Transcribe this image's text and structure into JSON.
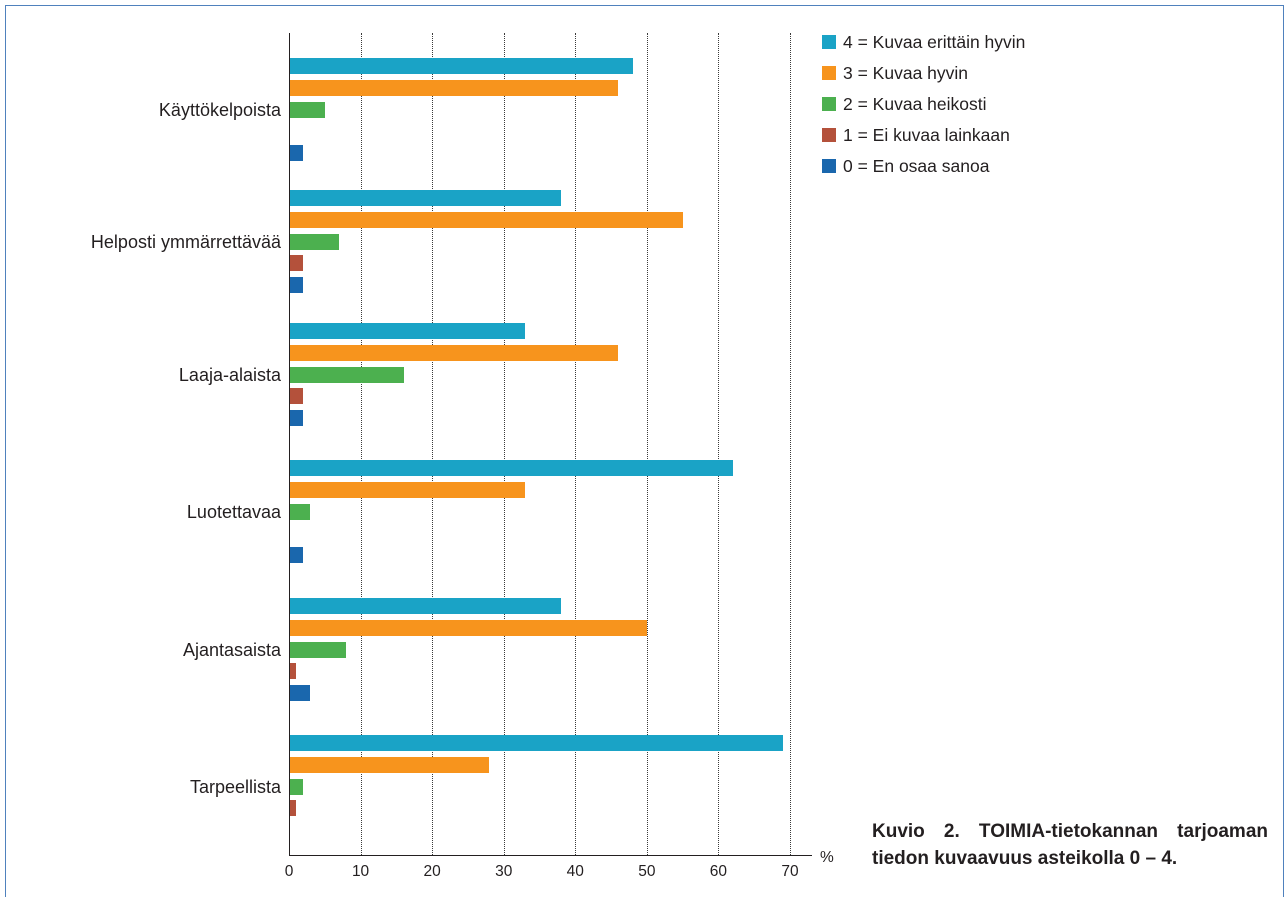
{
  "chart_data": {
    "type": "bar",
    "orientation": "horizontal",
    "title": "Kuvio 2. TOIMIA-tietokannan tarjoaman tiedon kuvaavuus asteikolla 0 – 4.",
    "categories": [
      "Käyttökelpoista",
      "Helposti ymmärrettävää",
      "Laaja-alaista",
      "Luotettavaa",
      "Ajantasaista",
      "Tarpeellista"
    ],
    "series": [
      {
        "name": "4 = Kuvaa erittäin hyvin",
        "color": "#1aa3c6",
        "values": [
          48,
          38,
          33,
          62,
          38,
          69
        ]
      },
      {
        "name": "3 = Kuvaa hyvin",
        "color": "#f7941d",
        "values": [
          46,
          55,
          46,
          33,
          50,
          28
        ]
      },
      {
        "name": "2 = Kuvaa heikosti",
        "color": "#4cb04f",
        "values": [
          5,
          7,
          16,
          3,
          8,
          2
        ]
      },
      {
        "name": "1 = Ei kuvaa lainkaan",
        "color": "#b4513b",
        "values": [
          0,
          2,
          2,
          0,
          1,
          1
        ]
      },
      {
        "name": "0 = En osaa sanoa",
        "color": "#1a67ad",
        "values": [
          2,
          2,
          2,
          2,
          3,
          0
        ]
      }
    ],
    "x_ticks": [
      0,
      10,
      20,
      30,
      40,
      50,
      60,
      70
    ],
    "x_unit": "%",
    "xlim": [
      0,
      70
    ],
    "grid": true,
    "legend": "top-right"
  },
  "colors": {
    "frame": "#4f81bd",
    "text": "#231f20",
    "axis": "#231f20"
  }
}
